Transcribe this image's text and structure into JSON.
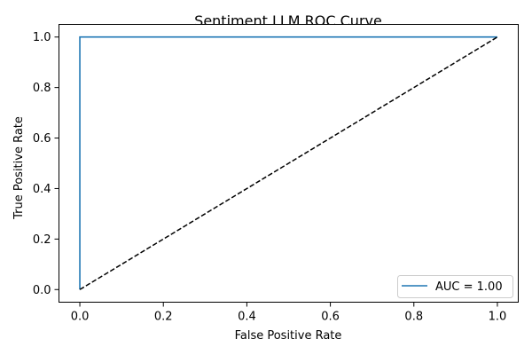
{
  "chart_data": {
    "type": "line",
    "title": "Sentiment LLM ROC Curve",
    "xlabel": "False Positive Rate",
    "ylabel": "True Positive Rate",
    "xlim": [
      -0.05,
      1.05
    ],
    "ylim": [
      -0.05,
      1.05
    ],
    "x_ticks": [
      "0.0",
      "0.2",
      "0.4",
      "0.6",
      "0.8",
      "1.0"
    ],
    "y_ticks": [
      "0.0",
      "0.2",
      "0.4",
      "0.6",
      "0.8",
      "1.0"
    ],
    "grid": false,
    "legend_position": "lower-right",
    "series": [
      {
        "name": "AUC = 1.00",
        "color": "#1f77b4",
        "style": "solid",
        "x": [
          0.0,
          0.0,
          1.0
        ],
        "y": [
          0.0,
          1.0,
          1.0
        ]
      },
      {
        "color": "#000000",
        "style": "dashed",
        "x": [
          0.0,
          1.0
        ],
        "y": [
          0.0,
          1.0
        ]
      }
    ]
  }
}
